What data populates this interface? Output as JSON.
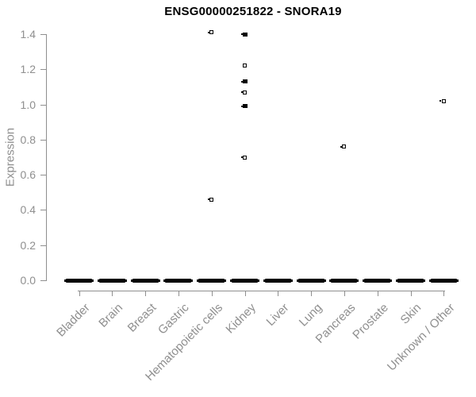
{
  "chart_data": {
    "type": "scatter",
    "subtype": "strip-plot-by-category",
    "title": "ENSG00000251822 - SNORA19",
    "xlabel": "",
    "ylabel": "Expression",
    "ylim": [
      0.0,
      1.4
    ],
    "yticks": [
      "0.0",
      "0.2",
      "0.4",
      "0.6",
      "0.8",
      "1.0",
      "1.2",
      "1.4"
    ],
    "grid": "off",
    "legend": "none",
    "categories": [
      "Bladder",
      "Brain",
      "Breast",
      "Gastric",
      "Hematopoietic cells",
      "Kidney",
      "Liver",
      "Lung",
      "Pancreas",
      "Prostate",
      "Skin",
      "Unknown / Other"
    ],
    "zero_cluster_note": "every category has a dense cluster of overlapping points at expression 0.0, drawn as a thick black dash",
    "zero_dash_categories": [
      "Bladder",
      "Brain",
      "Breast",
      "Gastric",
      "Hematopoietic cells",
      "Kidney",
      "Liver",
      "Lung",
      "Pancreas",
      "Prostate",
      "Skin",
      "Unknown / Other"
    ],
    "points": [
      {
        "category": "Hematopoietic cells",
        "value": 1.41,
        "n": 1,
        "nub": true
      },
      {
        "category": "Hematopoietic cells",
        "value": 0.46,
        "n": 1,
        "nub": true
      },
      {
        "category": "Kidney",
        "value": 1.4,
        "n": 2,
        "nub": true
      },
      {
        "category": "Kidney",
        "value": 1.22,
        "n": 1,
        "nub": false
      },
      {
        "category": "Kidney",
        "value": 1.13,
        "n": 2,
        "nub": true
      },
      {
        "category": "Kidney",
        "value": 1.07,
        "n": 1,
        "nub": true
      },
      {
        "category": "Kidney",
        "value": 0.99,
        "n": 2,
        "nub": true
      },
      {
        "category": "Kidney",
        "value": 0.7,
        "n": 1,
        "nub": true
      },
      {
        "category": "Pancreas",
        "value": 0.76,
        "n": 1,
        "nub": true
      },
      {
        "category": "Unknown / Other",
        "value": 1.02,
        "n": 1,
        "nub": true
      }
    ],
    "colors": {
      "marker": "#000000",
      "marker_fill": "#ffffff",
      "axis": "#8f8f8f",
      "tick_text": "#8f8f8f",
      "title_text": "#000000",
      "background": "#ffffff"
    }
  }
}
